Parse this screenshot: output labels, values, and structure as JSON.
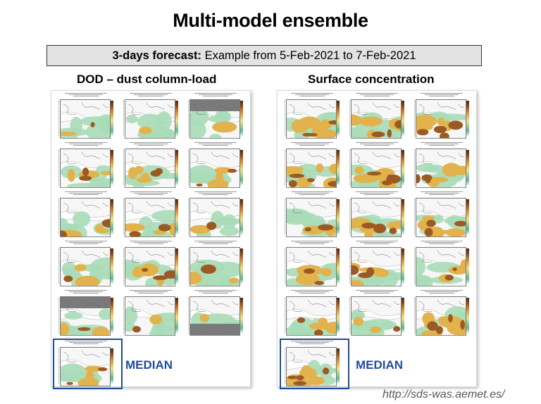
{
  "title": "Multi-model ensemble",
  "subtitle": {
    "bold": "3-days forecast:",
    "rest": " Example from 5-Feb-2021 to 7-Feb-2021"
  },
  "panels": {
    "left": {
      "title": "DOD – dust column-load",
      "median_label": "MEDIAN"
    },
    "right": {
      "title": "Surface concentration",
      "median_label": "MEDIAN"
    }
  },
  "footer": {
    "url": "http://sds-was.aemet.es/"
  },
  "colors": {
    "median_box": "#1f4d9a",
    "subtitle_bg": "#e3e3e3",
    "land": "#f7f7f7",
    "dust_light": "#a9dcb7",
    "dust_mid": "#e2b24c",
    "dust_heavy": "#9c5a22"
  }
}
